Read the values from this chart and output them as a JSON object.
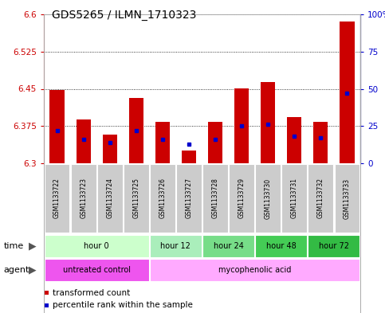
{
  "title": "GDS5265 / ILMN_1710323",
  "samples": [
    "GSM1133722",
    "GSM1133723",
    "GSM1133724",
    "GSM1133725",
    "GSM1133726",
    "GSM1133727",
    "GSM1133728",
    "GSM1133729",
    "GSM1133730",
    "GSM1133731",
    "GSM1133732",
    "GSM1133733"
  ],
  "bar_values": [
    6.447,
    6.388,
    6.358,
    6.432,
    6.383,
    6.325,
    6.383,
    6.45,
    6.463,
    6.393,
    6.383,
    6.585
  ],
  "percentile_values": [
    22,
    16,
    14,
    22,
    16,
    13,
    16,
    25,
    26,
    18,
    17,
    47
  ],
  "ymin": 6.3,
  "ymax": 6.6,
  "yticks": [
    6.3,
    6.375,
    6.45,
    6.525,
    6.6
  ],
  "ytick_labels": [
    "6.3",
    "6.375",
    "6.45",
    "6.525",
    "6.6"
  ],
  "right_yticks": [
    0,
    25,
    50,
    75,
    100
  ],
  "right_ytick_labels": [
    "0",
    "25",
    "50",
    "75",
    "100%"
  ],
  "bar_color": "#cc0000",
  "blue_color": "#0000cc",
  "bar_bottom": 6.3,
  "time_groups": [
    {
      "label": "hour 0",
      "start": 0,
      "end": 3,
      "color": "#ccffcc"
    },
    {
      "label": "hour 12",
      "start": 4,
      "end": 5,
      "color": "#aaeebb"
    },
    {
      "label": "hour 24",
      "start": 6,
      "end": 7,
      "color": "#77dd88"
    },
    {
      "label": "hour 48",
      "start": 8,
      "end": 9,
      "color": "#44cc55"
    },
    {
      "label": "hour 72",
      "start": 10,
      "end": 11,
      "color": "#33bb44"
    }
  ],
  "agent_groups": [
    {
      "label": "untreated control",
      "start": 0,
      "end": 3,
      "color": "#ee55ee"
    },
    {
      "label": "mycophenolic acid",
      "start": 4,
      "end": 11,
      "color": "#ffaaff"
    }
  ],
  "legend_items": [
    {
      "label": "transformed count",
      "color": "#cc0000"
    },
    {
      "label": "percentile rank within the sample",
      "color": "#0000cc"
    }
  ],
  "title_fontsize": 10,
  "tick_fontsize": 7.5,
  "bar_width": 0.55,
  "bg_color": "#ffffff",
  "grid_color": "#000000",
  "label_bg": "#cccccc"
}
